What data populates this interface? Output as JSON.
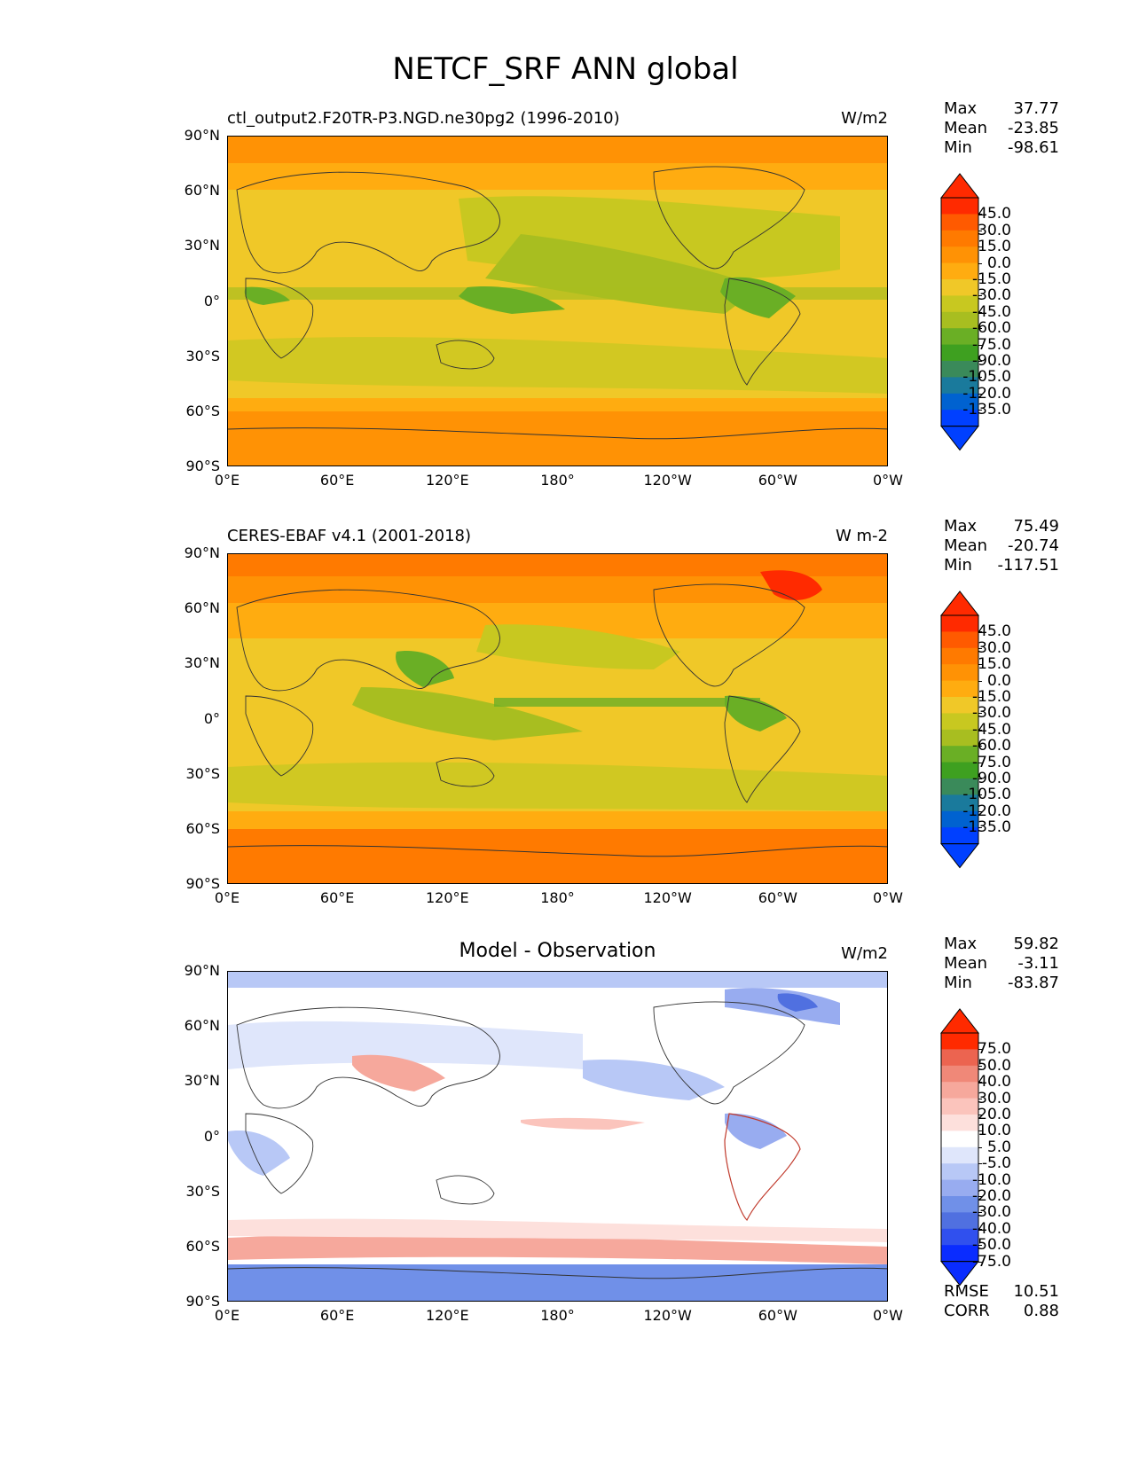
{
  "figure": {
    "title": "NETCF_SRF ANN global"
  },
  "axes": {
    "lat_labels": [
      "90°N",
      "60°N",
      "30°N",
      "0°",
      "30°S",
      "60°S",
      "90°S"
    ],
    "lon_labels": [
      "0°E",
      "60°E",
      "120°E",
      "180°",
      "120°W",
      "60°W",
      "0°W"
    ]
  },
  "colors": {
    "main": [
      "#0040ff",
      "#0062d0",
      "#1a7a9c",
      "#3a8a5a",
      "#3ea020",
      "#6aaf25",
      "#a8be20",
      "#c8c820",
      "#f0c828",
      "#ffac10",
      "#ff9205",
      "#ff7a00",
      "#ff5a00",
      "#ff2a00"
    ],
    "diff": [
      "#0a2cff",
      "#3050ee",
      "#5070e0",
      "#7090e8",
      "#98acf0",
      "#b8c8f6",
      "#dfe6fb",
      "#ffffff",
      "#fde0dc",
      "#fbc4bc",
      "#f6a89c",
      "#f08878",
      "#ec6450",
      "#ff2a00"
    ],
    "ocean_main": "#f0c828",
    "ocean_diff": "#ffffff"
  },
  "panels": [
    {
      "id": "model",
      "left_title": "ctl_output2.F20TR-P3.NGD.ne30pg2 (1996-2010)",
      "center_title": "",
      "units": "W/m2",
      "stats": [
        {
          "label": "Max",
          "value": "37.77"
        },
        {
          "label": "Mean",
          "value": "-23.85"
        },
        {
          "label": "Min",
          "value": "-98.61"
        }
      ],
      "colorbar_ticks": [
        "45.0",
        "30.0",
        "15.0",
        "0.0",
        "-15.0",
        "-30.0",
        "-45.0",
        "-60.0",
        "-75.0",
        "-90.0",
        "-105.0",
        "-120.0",
        "-135.0"
      ],
      "colorbar_colors": "main",
      "extra_stats": []
    },
    {
      "id": "obs",
      "left_title": "CERES-EBAF v4.1 (2001-2018)",
      "center_title": "",
      "units": "W m-2",
      "stats": [
        {
          "label": "Max",
          "value": "75.49"
        },
        {
          "label": "Mean",
          "value": "-20.74"
        },
        {
          "label": "Min",
          "value": "-117.51"
        }
      ],
      "colorbar_ticks": [
        "45.0",
        "30.0",
        "15.0",
        "0.0",
        "-15.0",
        "-30.0",
        "-45.0",
        "-60.0",
        "-75.0",
        "-90.0",
        "-105.0",
        "-120.0",
        "-135.0"
      ],
      "colorbar_colors": "main",
      "extra_stats": []
    },
    {
      "id": "diff",
      "left_title": "",
      "center_title": "Model - Observation",
      "units": "W/m2",
      "stats": [
        {
          "label": "Max",
          "value": "59.82"
        },
        {
          "label": "Mean",
          "value": "-3.11"
        },
        {
          "label": "Min",
          "value": "-83.87"
        }
      ],
      "colorbar_ticks": [
        "75.0",
        "50.0",
        "40.0",
        "30.0",
        "20.0",
        "10.0",
        "5.0",
        "-5.0",
        "-10.0",
        "-20.0",
        "-30.0",
        "-40.0",
        "-50.0",
        "-75.0"
      ],
      "colorbar_colors": "diff",
      "extra_stats": [
        {
          "label": "RMSE",
          "value": "10.51"
        },
        {
          "label": "CORR",
          "value": "0.88"
        }
      ]
    }
  ]
}
